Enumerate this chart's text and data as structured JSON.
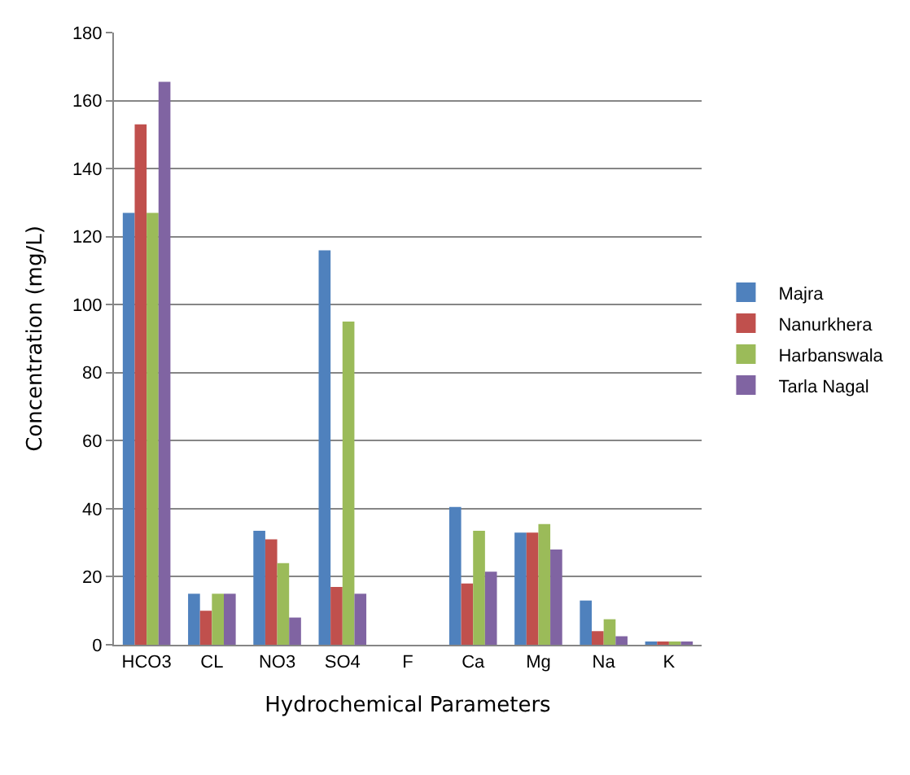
{
  "chart_data": {
    "type": "bar",
    "xlabel": "Hydrochemical Parameters",
    "ylabel": "Concentration (mg/L)",
    "categories": [
      "HCO3",
      "CL",
      "NO3",
      "SO4",
      "F",
      "Ca",
      "Mg",
      "Na",
      "K"
    ],
    "series": [
      {
        "name": "Majra",
        "color": "#4f81bd",
        "values": [
          127,
          15,
          33.5,
          116,
          0,
          40.5,
          33,
          13,
          0.5
        ]
      },
      {
        "name": "Nanurkhera",
        "color": "#c0504d",
        "values": [
          153,
          10,
          31,
          17,
          0,
          18,
          33,
          4,
          0.5
        ]
      },
      {
        "name": "Harbanswala",
        "color": "#9bbb59",
        "values": [
          127,
          15,
          24,
          95,
          0,
          33.5,
          35.5,
          7.5,
          0.5
        ]
      },
      {
        "name": "Tarla Nagal",
        "color": "#8064a2",
        "values": [
          165.5,
          15,
          8,
          15,
          0,
          21.5,
          28,
          2.5,
          0.5
        ]
      }
    ],
    "ylim": [
      0,
      180
    ],
    "yticks": [
      0,
      20,
      40,
      60,
      80,
      100,
      120,
      140,
      160,
      180
    ],
    "grid": "y",
    "legend": "right"
  }
}
